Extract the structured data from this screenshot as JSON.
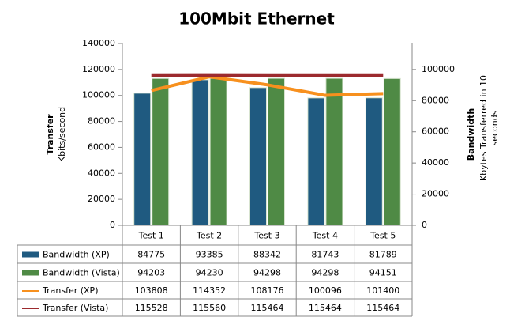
{
  "chart_data": {
    "type": "bar-line",
    "title": "100Mbit Ethernet",
    "ylabel": {
      "title": "Transfer",
      "subtitle": "Kbits/second"
    },
    "y2label": {
      "title": "Bandwidth",
      "subtitle": "Kbytes Transferred in 10 seconds"
    },
    "categories": [
      "Test 1",
      "Test 2",
      "Test 3",
      "Test 4",
      "Test 5"
    ],
    "series": [
      {
        "name": "Bandwidth (XP)",
        "color": "#1f5a80",
        "kind": "bar",
        "axis": "y2",
        "values": [
          84775,
          93385,
          88342,
          81743,
          81789
        ]
      },
      {
        "name": "Bandwidth (Vista)",
        "color": "#4f8a45",
        "kind": "bar",
        "axis": "y2",
        "values": [
          94203,
          94230,
          94298,
          94298,
          94151
        ]
      },
      {
        "name": "Transfer (XP)",
        "color": "#f7901e",
        "kind": "line",
        "values": [
          103808,
          114352,
          108176,
          100096,
          101400
        ]
      },
      {
        "name": "Transfer (Vista)",
        "color": "#9c2a2e",
        "kind": "line",
        "values": [
          115528,
          115560,
          115464,
          115464,
          115464
        ]
      }
    ],
    "ylim": [
      0,
      140000
    ],
    "yticks": [
      0,
      20000,
      40000,
      60000,
      80000,
      100000,
      120000,
      140000
    ],
    "y2lim": [
      0,
      116666.67
    ],
    "y2ticks": [
      0,
      20000,
      40000,
      60000,
      80000,
      100000
    ],
    "grid": false
  }
}
